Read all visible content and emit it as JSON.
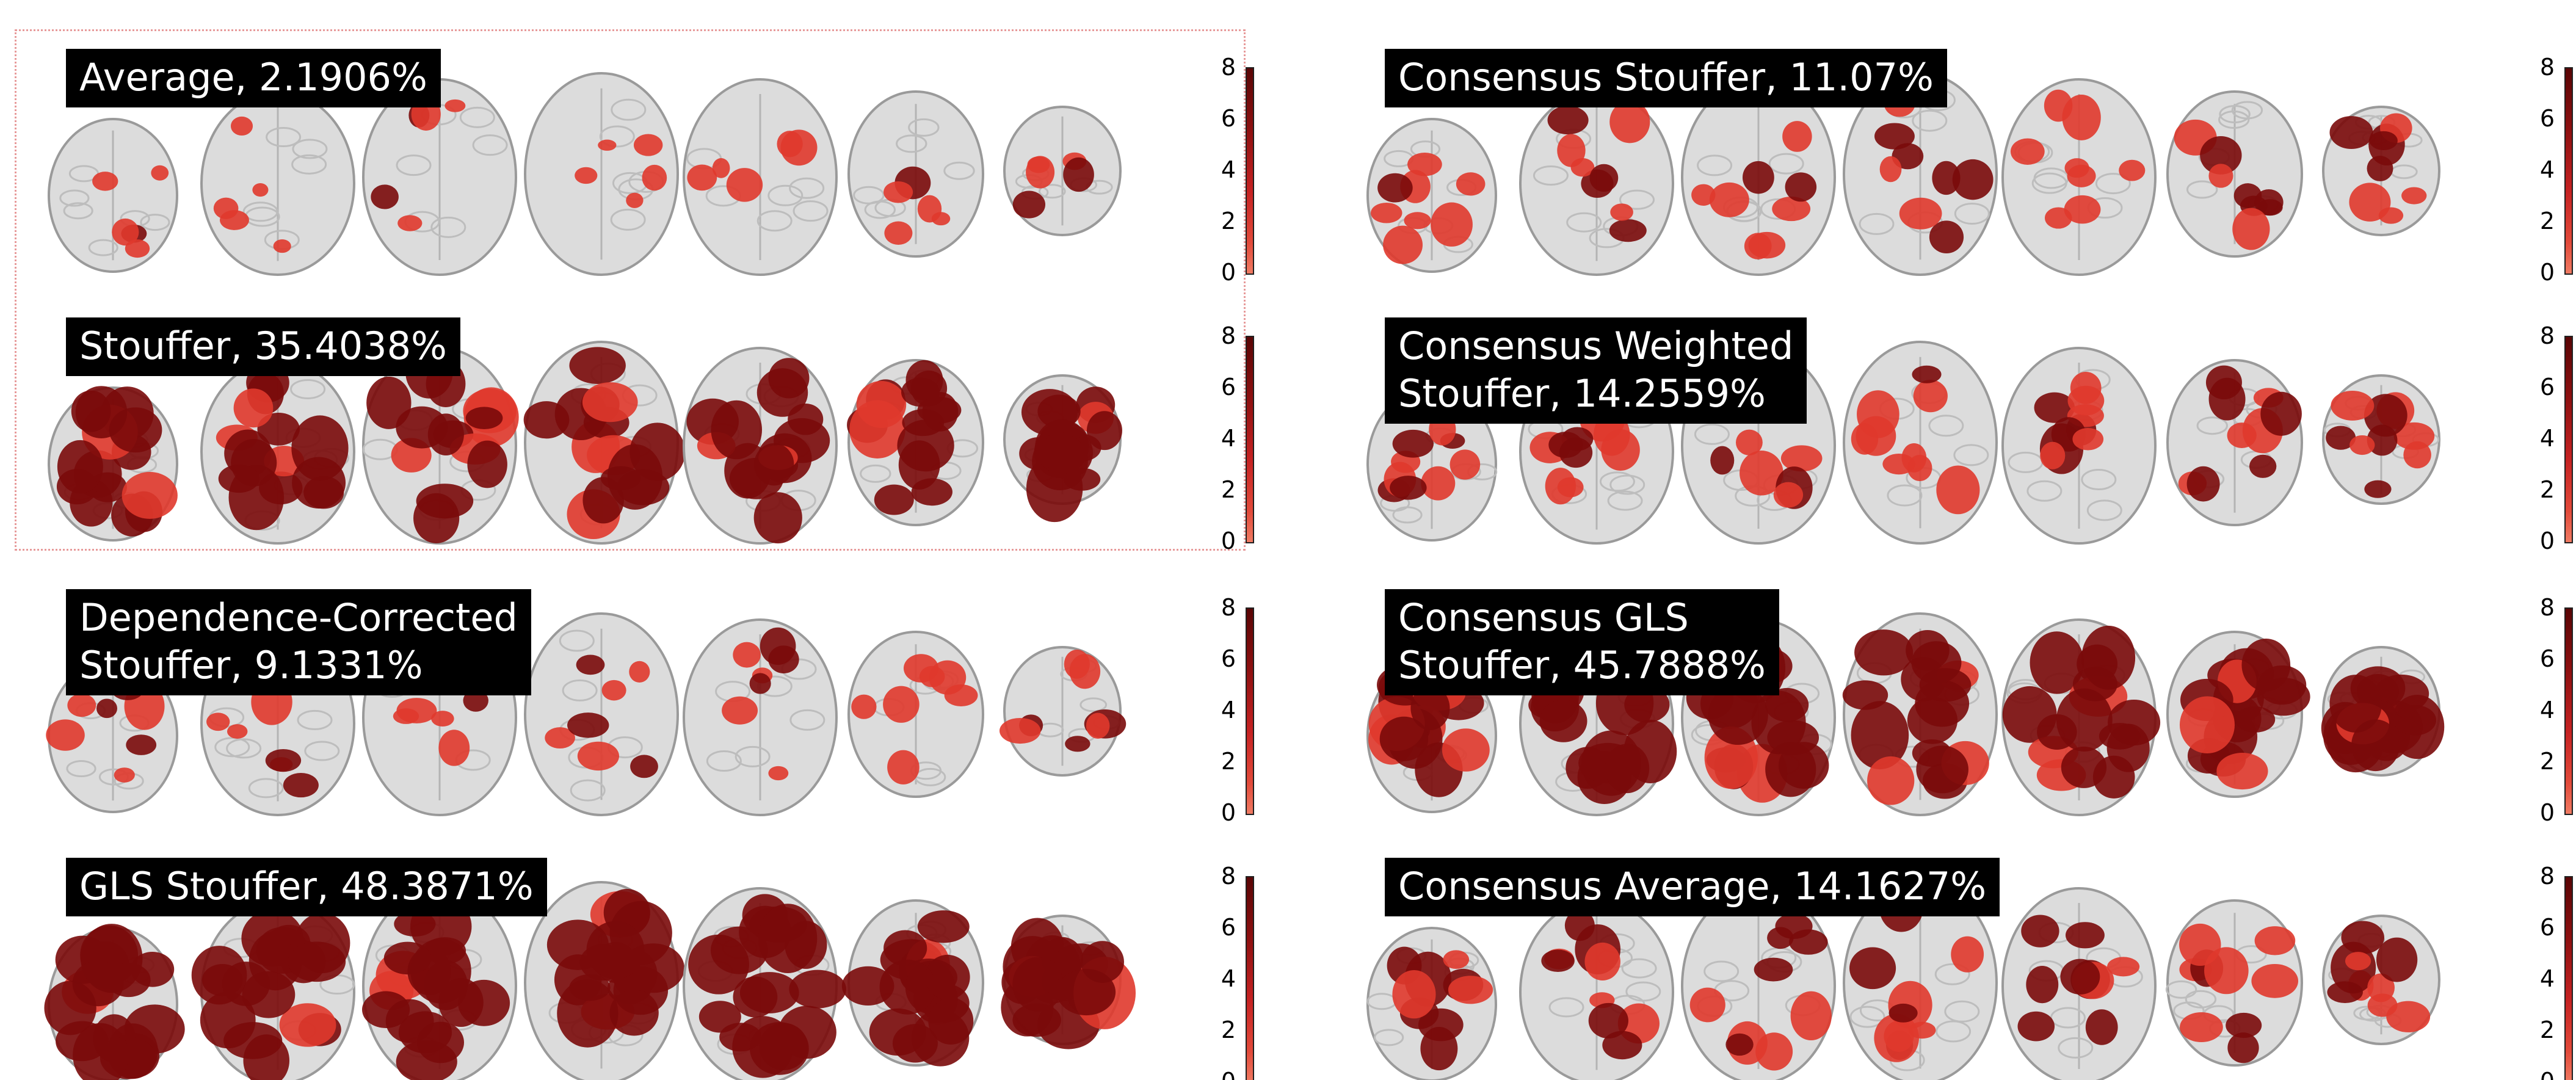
{
  "panels": [
    {
      "label": "Average, 2.1906%",
      "blob_level": 0.15
    },
    {
      "label": "Consensus Stouffer, 11.07%",
      "blob_level": 0.35
    },
    {
      "label": "Stouffer, 35.4038%",
      "blob_level": 0.75
    },
    {
      "label": "Consensus Weighted\nStouffer, 14.2559%",
      "blob_level": 0.4
    },
    {
      "label": "Dependence-Corrected\nStouffer, 9.1331%",
      "blob_level": 0.3
    },
    {
      "label": "Consensus GLS\nStouffer, 45.7888%",
      "blob_level": 0.85
    },
    {
      "label": "GLS Stouffer, 48.3871%",
      "blob_level": 0.9
    },
    {
      "label": "Consensus Average, 14.1627%",
      "blob_level": 0.45
    }
  ],
  "colorbar": {
    "ticks": [
      "8",
      "6",
      "4",
      "2",
      "0"
    ],
    "colors": {
      "top": "#5a0505",
      "bottom": "#f07a62"
    }
  },
  "colors": {
    "brain_fill": "#dcdcdc",
    "brain_edge": "#9a9a9a",
    "activation_light": "#e0392c",
    "activation_dark": "#7a0a0a",
    "highlight_border": "#e79a9a"
  }
}
